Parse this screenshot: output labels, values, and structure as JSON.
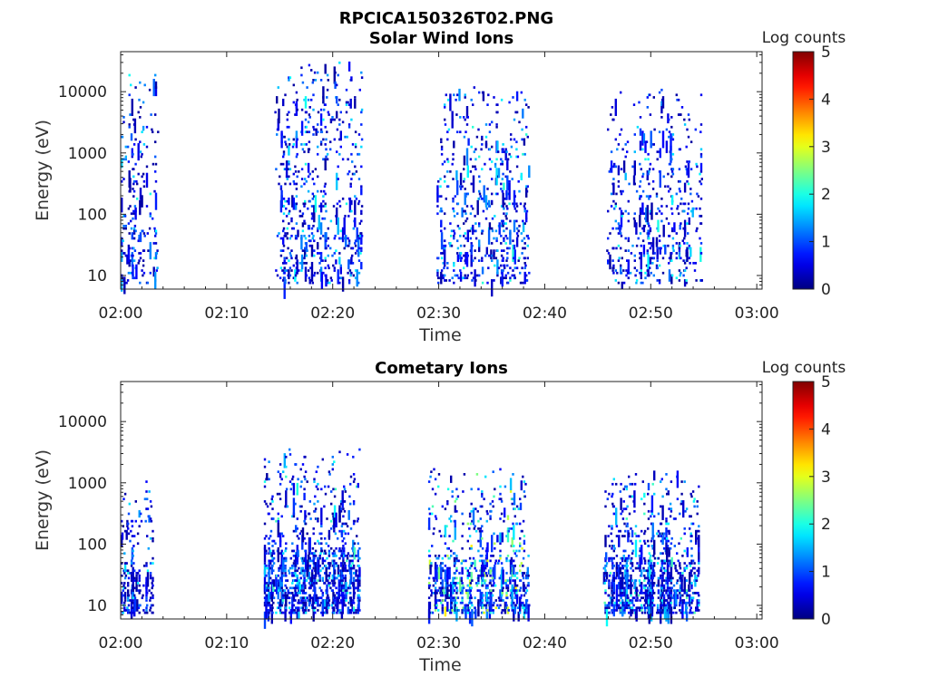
{
  "figure_title": "RPCICA150326T02.PNG",
  "colorbar_label": "Log counts",
  "colorbar_ticks": [
    "0",
    "1",
    "2",
    "3",
    "4",
    "5"
  ],
  "chart_data": [
    {
      "type": "heatmap",
      "title": "Solar Wind Ions",
      "xlabel": "Time",
      "ylabel": "Energy (eV)",
      "x_ticks": [
        "02:00",
        "02:10",
        "02:20",
        "02:30",
        "02:40",
        "02:50",
        "03:00"
      ],
      "x_range_minutes": [
        0,
        60.5
      ],
      "y_ticks": [
        "10",
        "100",
        "1000",
        "10000"
      ],
      "y_tick_values": [
        10,
        100,
        1000,
        10000
      ],
      "y_scale": "log",
      "ylim": [
        6,
        45000
      ],
      "color_range": [
        0,
        5
      ],
      "colormap": "jet",
      "bursts": [
        {
          "start_min": 0.0,
          "end_min": 3.5,
          "e_low": 7,
          "e_high": 20000,
          "peak_log_count": 2.0
        },
        {
          "start_min": 14.5,
          "end_min": 22.8,
          "e_low": 7,
          "e_high": 30000,
          "peak_log_count": 2.0
        },
        {
          "start_min": 29.8,
          "end_min": 38.5,
          "e_low": 7,
          "e_high": 12000,
          "peak_log_count": 2.1
        },
        {
          "start_min": 45.8,
          "end_min": 54.8,
          "e_low": 7,
          "e_high": 12000,
          "peak_log_count": 2.0
        }
      ]
    },
    {
      "type": "heatmap",
      "title": "Cometary Ions",
      "xlabel": "Time",
      "ylabel": "Energy (eV)",
      "x_ticks": [
        "02:00",
        "02:10",
        "02:20",
        "02:30",
        "02:40",
        "02:50",
        "03:00"
      ],
      "x_range_minutes": [
        0,
        60.5
      ],
      "y_ticks": [
        "10",
        "100",
        "1000",
        "10000"
      ],
      "y_tick_values": [
        10,
        100,
        1000,
        10000
      ],
      "y_scale": "log",
      "ylim": [
        6,
        45000
      ],
      "color_range": [
        0,
        5
      ],
      "colormap": "jet",
      "bursts": [
        {
          "start_min": 0.0,
          "end_min": 3.0,
          "e_low": 7,
          "e_high": 1100,
          "peak_log_count": 2.0
        },
        {
          "start_min": 13.5,
          "end_min": 22.5,
          "e_low": 7,
          "e_high": 3500,
          "peak_log_count": 2.2
        },
        {
          "start_min": 29.0,
          "end_min": 38.5,
          "e_low": 7,
          "e_high": 1800,
          "peak_log_count": 3.2
        },
        {
          "start_min": 45.5,
          "end_min": 54.5,
          "e_low": 7,
          "e_high": 1600,
          "peak_log_count": 2.3
        }
      ]
    }
  ]
}
